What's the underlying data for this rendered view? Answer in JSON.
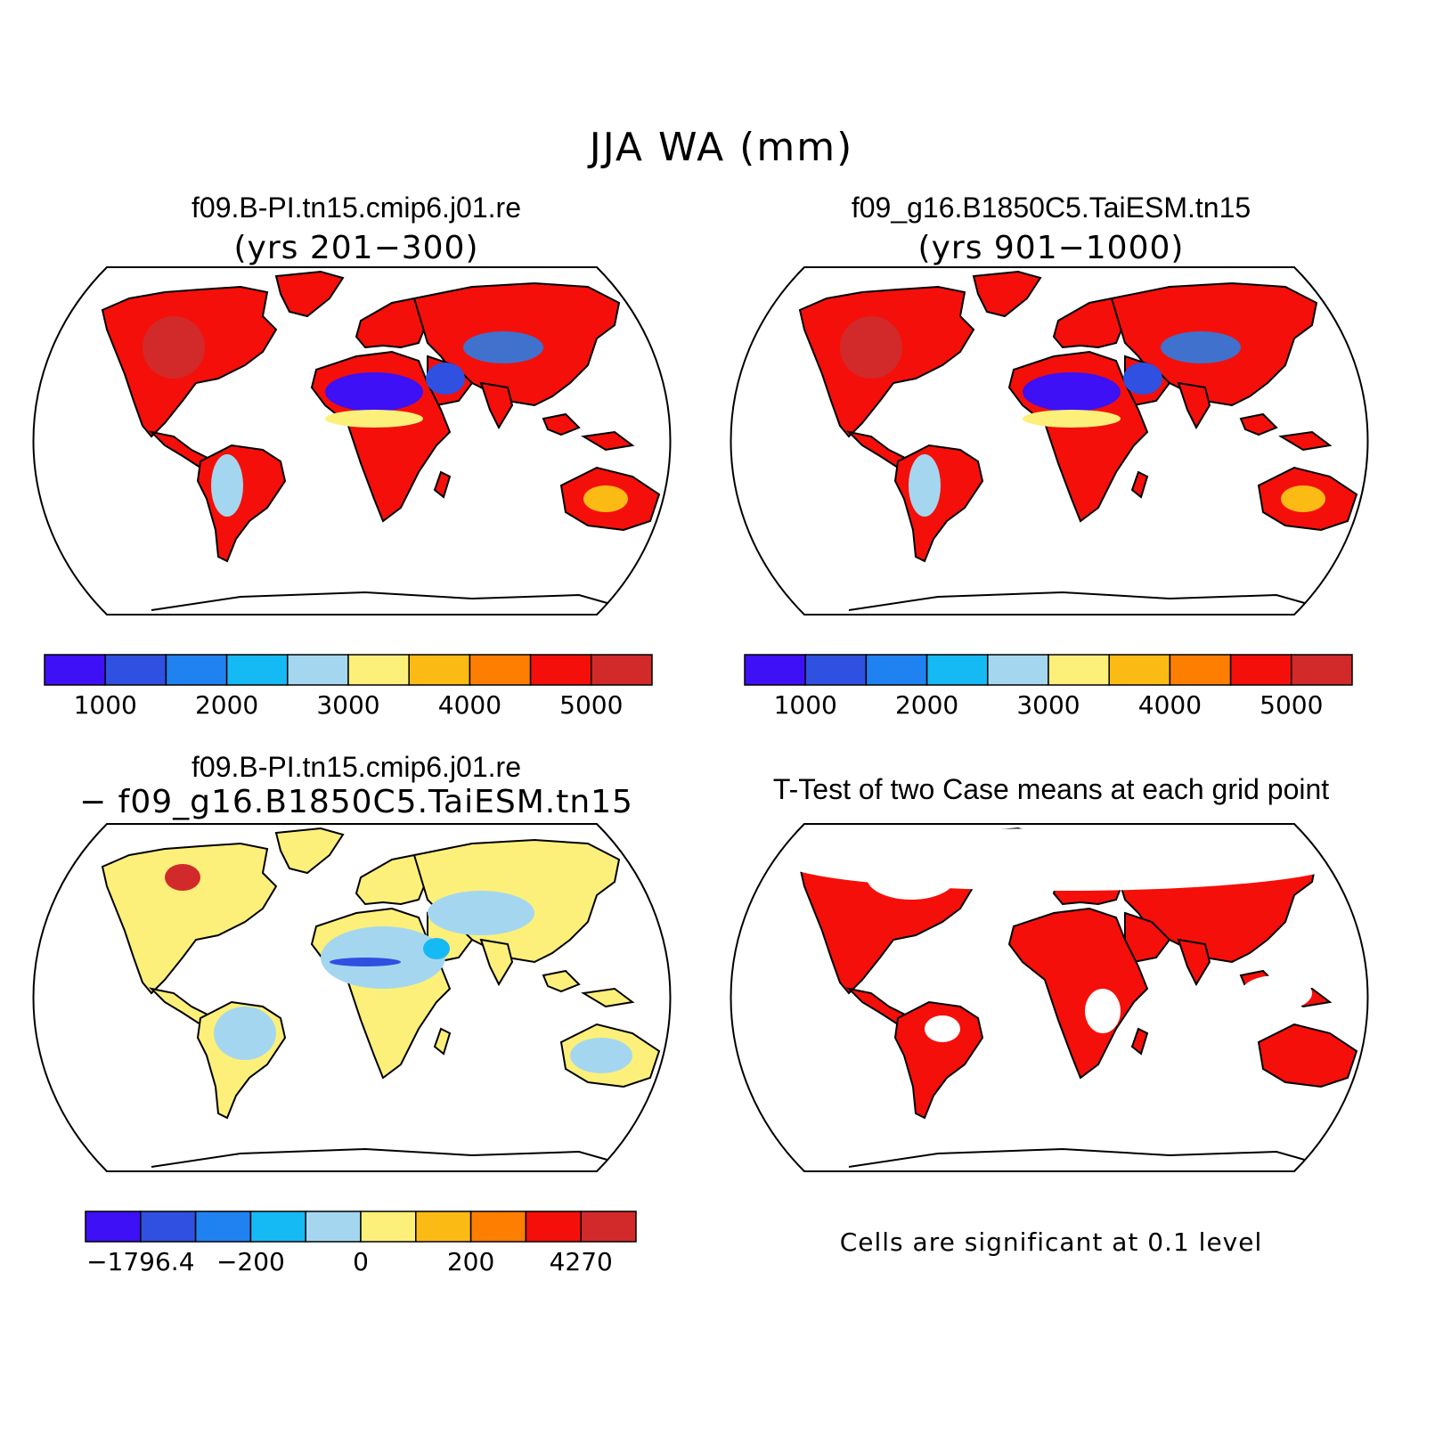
{
  "title": "JJA WA (mm)",
  "panels": [
    {
      "title": "f09.B-PI.tn15.cmip6.j01.re",
      "subtitle": "(yrs 201−300)",
      "colorbar": {
        "colors": [
          "#3d10f5",
          "#2f50e0",
          "#2082f0",
          "#15baf5",
          "#a4d7ef",
          "#fdf07a",
          "#fcbb14",
          "#fd7e00",
          "#f50f0a",
          "#d22a2a"
        ],
        "labels": [
          "1000",
          "2000",
          "3000",
          "4000",
          "5000"
        ]
      }
    },
    {
      "title": "f09_g16.B1850C5.TaiESM.tn15",
      "subtitle": "(yrs 901−1000)",
      "colorbar": {
        "colors": [
          "#3d10f5",
          "#2f50e0",
          "#2082f0",
          "#15baf5",
          "#a4d7ef",
          "#fdf07a",
          "#fcbb14",
          "#fd7e00",
          "#f50f0a",
          "#d22a2a"
        ],
        "labels": [
          "1000",
          "2000",
          "3000",
          "4000",
          "5000"
        ]
      }
    },
    {
      "title": "f09.B-PI.tn15.cmip6.j01.re",
      "subtitle": "− f09_g16.B1850C5.TaiESM.tn15",
      "colorbar": {
        "colors": [
          "#3d10f5",
          "#2f50e0",
          "#2082f0",
          "#15baf5",
          "#a4d7ef",
          "#fdf07a",
          "#fcbb14",
          "#fd7e00",
          "#f50f0a",
          "#d22a2a"
        ],
        "labels": [
          "−1796.4",
          "−200",
          "0",
          "200",
          "4270"
        ]
      }
    },
    {
      "title": "T-Test of two Case means at each grid point",
      "note": "Cells are significant at 0.1 level",
      "significant_color": "#f50f0a"
    }
  ]
}
